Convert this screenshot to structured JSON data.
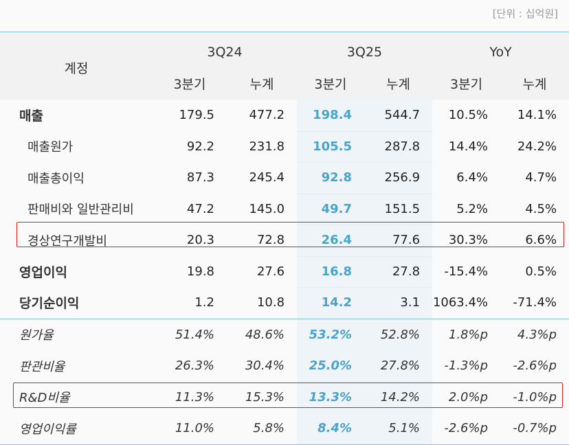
{
  "unit_label": "[단위 : 십억원]",
  "header": {
    "account": "계정",
    "groups": [
      "3Q24",
      "3Q25",
      "YoY"
    ],
    "subs": [
      "3분기",
      "누계",
      "3분기",
      "누계",
      "3분기",
      "누계"
    ]
  },
  "rows": [
    {
      "label": "매출",
      "values": [
        "179.5",
        "477.2",
        "198.4",
        "544.7",
        "10.5%",
        "14.1%"
      ]
    },
    {
      "label": "매출원가",
      "values": [
        "92.2",
        "231.8",
        "105.5",
        "287.8",
        "14.4%",
        "24.2%"
      ]
    },
    {
      "label": "매출총이익",
      "values": [
        "87.3",
        "245.4",
        "92.8",
        "256.9",
        "6.4%",
        "4.7%"
      ]
    },
    {
      "label": "판매비와 일반관리비",
      "values": [
        "47.2",
        "145.0",
        "49.7",
        "151.5",
        "5.2%",
        "4.5%"
      ]
    },
    {
      "label": "경상연구개발비",
      "values": [
        "20.3",
        "72.8",
        "26.4",
        "77.6",
        "30.3%",
        "6.6%"
      ]
    },
    {
      "label": "영업이익",
      "values": [
        "19.8",
        "27.6",
        "16.8",
        "27.8",
        "-15.4%",
        "0.5%"
      ]
    },
    {
      "label": "당기순이익",
      "values": [
        "1.2",
        "10.8",
        "14.2",
        "3.1",
        "1063.4%",
        "-71.4%"
      ]
    }
  ],
  "ratios": [
    {
      "label": "원가율",
      "values": [
        "51.4%",
        "48.6%",
        "53.2%",
        "52.8%",
        "1.8%p",
        "4.3%p"
      ]
    },
    {
      "label": "판관비율",
      "values": [
        "26.3%",
        "30.4%",
        "25.0%",
        "27.8%",
        "-1.3%p",
        "-2.6%p"
      ]
    },
    {
      "label": "R&D비율",
      "values": [
        "11.3%",
        "15.3%",
        "13.3%",
        "14.2%",
        "2.0%p",
        "-1.0%p"
      ]
    },
    {
      "label": "영업이익률",
      "values": [
        "11.0%",
        "5.8%",
        "8.4%",
        "5.1%",
        "-2.6%p",
        "-0.7%p"
      ]
    }
  ],
  "colors": {
    "accent": "#4aa3c8",
    "highlight_box": "#e01e1e",
    "rule": "#7fc0de"
  }
}
